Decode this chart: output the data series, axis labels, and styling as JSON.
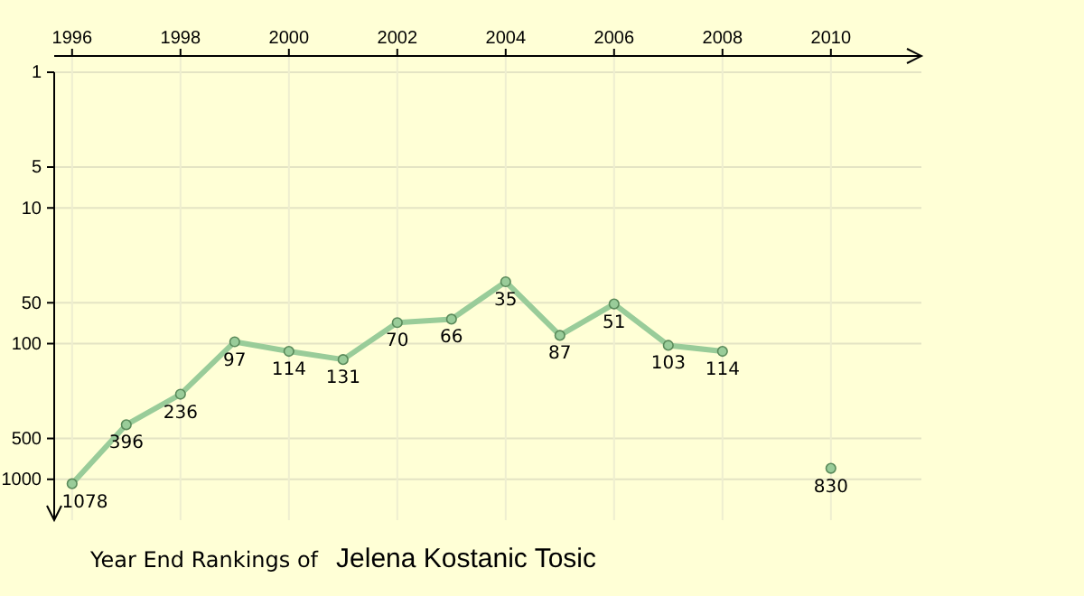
{
  "chart_data": {
    "type": "line",
    "title": "Year End Rankings of",
    "subtitle": "Jelena Kostanic Tosic",
    "x": [
      1996,
      1997,
      1998,
      1999,
      2000,
      2001,
      2002,
      2003,
      2004,
      2005,
      2006,
      2007,
      2008,
      2009,
      2010
    ],
    "series": [
      {
        "color": "#99cc99",
        "values": [
          1078,
          396,
          236,
          97,
          114,
          131,
          70,
          66,
          35,
          87,
          51,
          103,
          114,
          null,
          830
        ]
      }
    ],
    "data_labels": true,
    "marker": "circle",
    "log": true,
    "grid": true,
    "xlim": [
      1995.67,
      2011.67
    ],
    "xticks": [
      1996,
      1998,
      2000,
      2002,
      2004,
      2006,
      2008,
      2010
    ],
    "ylim": [
      2000,
      1
    ],
    "yticks": [
      1,
      5,
      10,
      50,
      100,
      500,
      1000
    ]
  }
}
